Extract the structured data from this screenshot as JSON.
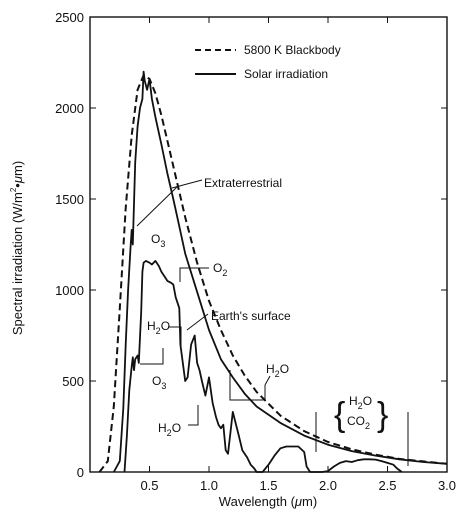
{
  "chart_data": {
    "type": "line",
    "xlabel_parts": {
      "pre": "Wavelength (",
      "mu": "μ",
      "post": "m)"
    },
    "ylabel_parts": {
      "pre": "Spectral irradiation (W/m",
      "sup": "2",
      "mid": "•",
      "mu": "μ",
      "post": "m)"
    },
    "xlim": [
      0,
      3.0
    ],
    "ylim": [
      0,
      2500
    ],
    "xticks": [
      0.5,
      1.0,
      1.5,
      2.0,
      2.5,
      3.0
    ],
    "xtick_labels": [
      "0.5",
      "1.0",
      "1.5",
      "2.0",
      "2.5",
      "3.0"
    ],
    "yticks": [
      0,
      500,
      1000,
      1500,
      2000,
      2500
    ],
    "ytick_labels": [
      "0",
      "500",
      "1000",
      "1500",
      "2000",
      "2500"
    ],
    "legend_position": "top-right",
    "series": [
      {
        "name": "5800 K Blackbody",
        "style": "dashed",
        "x": [
          0.08,
          0.15,
          0.2,
          0.25,
          0.3,
          0.35,
          0.4,
          0.45,
          0.5,
          0.55,
          0.6,
          0.65,
          0.7,
          0.8,
          0.9,
          1.0,
          1.1,
          1.2,
          1.3,
          1.4,
          1.6,
          1.8,
          2.0,
          2.2,
          2.4,
          2.6,
          2.8,
          3.0
        ],
        "y": [
          0,
          60,
          360,
          900,
          1450,
          1850,
          2100,
          2180,
          2160,
          2080,
          1960,
          1820,
          1680,
          1400,
          1150,
          940,
          780,
          640,
          530,
          440,
          310,
          225,
          165,
          125,
          95,
          72,
          58,
          45
        ]
      },
      {
        "name": "Solar irradiation (extraterrestrial)",
        "style": "solid",
        "x": [
          0.2,
          0.25,
          0.28,
          0.3,
          0.32,
          0.34,
          0.35,
          0.36,
          0.38,
          0.4,
          0.42,
          0.44,
          0.45,
          0.46,
          0.48,
          0.5,
          0.52,
          0.55,
          0.6,
          0.65,
          0.7,
          0.75,
          0.8,
          0.9,
          1.0,
          1.1,
          1.2,
          1.3,
          1.4,
          1.6,
          1.8,
          2.0,
          2.2,
          2.4,
          2.6,
          2.8,
          3.0
        ],
        "y": [
          0,
          60,
          350,
          700,
          1000,
          1230,
          1330,
          1250,
          1700,
          1900,
          2000,
          2050,
          2200,
          2150,
          2100,
          2160,
          2050,
          1950,
          1800,
          1640,
          1500,
          1350,
          1200,
          990,
          780,
          620,
          520,
          430,
          360,
          270,
          200,
          150,
          115,
          90,
          70,
          55,
          45
        ]
      },
      {
        "name": "Earth's surface",
        "style": "solid",
        "x": [
          0.29,
          0.31,
          0.33,
          0.35,
          0.36,
          0.37,
          0.38,
          0.4,
          0.41,
          0.43,
          0.44,
          0.45,
          0.47,
          0.5,
          0.52,
          0.55,
          0.58,
          0.6,
          0.62,
          0.65,
          0.68,
          0.7,
          0.72,
          0.75,
          0.76,
          0.78,
          0.8,
          0.82,
          0.85,
          0.88,
          0.9,
          0.92,
          0.94,
          0.97,
          1.0,
          1.03,
          1.06,
          1.08,
          1.1,
          1.12,
          1.14,
          1.16,
          1.2,
          1.25,
          1.28,
          1.32,
          1.35,
          1.38,
          1.4,
          1.45,
          1.5,
          1.55,
          1.6,
          1.65,
          1.7,
          1.75,
          1.8,
          1.82,
          1.85,
          1.95,
          2.0,
          2.05,
          2.1,
          2.15,
          2.2,
          2.25,
          2.3,
          2.35,
          2.4,
          2.45,
          2.5,
          2.55,
          2.58,
          2.62
        ],
        "y": [
          0,
          200,
          450,
          580,
          630,
          560,
          620,
          640,
          600,
          880,
          1100,
          1150,
          1160,
          1150,
          1140,
          1160,
          1130,
          1100,
          1080,
          1050,
          1040,
          1030,
          960,
          900,
          700,
          600,
          500,
          520,
          700,
          750,
          600,
          560,
          500,
          420,
          520,
          380,
          300,
          260,
          240,
          260,
          120,
          100,
          330,
          200,
          120,
          80,
          40,
          20,
          0,
          0,
          40,
          90,
          130,
          140,
          140,
          140,
          110,
          30,
          0,
          0,
          5,
          30,
          50,
          60,
          55,
          65,
          70,
          70,
          68,
          60,
          50,
          40,
          20,
          0
        ]
      }
    ],
    "legend": [
      {
        "label": "5800 K Blackbody",
        "style": "dashed"
      },
      {
        "label": "Solar irradiation",
        "style": "solid"
      }
    ],
    "annotations": {
      "extraterrestrial": "Extraterrestrial",
      "o3_top": {
        "main": "O",
        "sub": "3"
      },
      "o2": {
        "main": "O",
        "sub": "2"
      },
      "h2o_left": {
        "pre": "H",
        "sub": "2",
        "post": "O"
      },
      "earths_surface": "Earth's surface",
      "o3_bottom": {
        "main": "O",
        "sub": "3"
      },
      "h2o_right": {
        "pre": "H",
        "sub": "2",
        "post": "O"
      },
      "h2o_bottom": {
        "pre": "H",
        "sub": "2",
        "post": "O"
      },
      "h2o_brace": {
        "pre": "H",
        "sub": "2",
        "post": "O"
      },
      "co2_brace": {
        "pre": "CO",
        "sub": "2"
      },
      "brace_left": "{",
      "brace_right": "}"
    }
  }
}
